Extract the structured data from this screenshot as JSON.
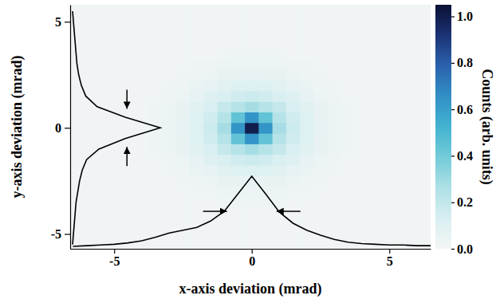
{
  "chart_data": {
    "type": "heatmap",
    "x_label": "x-axis deviation (mrad)",
    "y_label": "y-axis deviation (mrad)",
    "xlim": [
      -6.6,
      6.5
    ],
    "ylim": [
      -5.7,
      5.8
    ],
    "xticks": [
      -5,
      0,
      5
    ],
    "yticks": [
      -5,
      0,
      5
    ],
    "x_edges": [
      -6.6,
      -4.25,
      -3.75,
      -3.25,
      -2.75,
      -2.25,
      -1.75,
      -1.25,
      -0.75,
      -0.25,
      0.25,
      0.75,
      1.25,
      1.75,
      2.25,
      2.75,
      3.25,
      3.75,
      4.25,
      6.5
    ],
    "y_edges": [
      -5.7,
      -4.25,
      -3.75,
      -3.25,
      -2.75,
      -2.25,
      -1.75,
      -1.25,
      -0.75,
      -0.25,
      0.25,
      0.75,
      1.25,
      1.75,
      2.25,
      2.75,
      3.25,
      3.75,
      4.25,
      5.8
    ],
    "z": [
      [
        0.02,
        0.02,
        0.02,
        0.02,
        0.02,
        0.02,
        0.02,
        0.02,
        0.02,
        0.02,
        0.02,
        0.02,
        0.02,
        0.02,
        0.02,
        0.02,
        0.02,
        0.02,
        0.02
      ],
      [
        0.02,
        0.02,
        0.02,
        0.02,
        0.02,
        0.02,
        0.02,
        0.02,
        0.02,
        0.02,
        0.02,
        0.02,
        0.02,
        0.02,
        0.02,
        0.02,
        0.02,
        0.02,
        0.02
      ],
      [
        0.02,
        0.02,
        0.02,
        0.02,
        0.02,
        0.02,
        0.02,
        0.03,
        0.03,
        0.03,
        0.03,
        0.03,
        0.02,
        0.02,
        0.02,
        0.02,
        0.02,
        0.02,
        0.02
      ],
      [
        0.02,
        0.02,
        0.02,
        0.02,
        0.02,
        0.03,
        0.03,
        0.04,
        0.04,
        0.04,
        0.04,
        0.04,
        0.03,
        0.03,
        0.02,
        0.02,
        0.02,
        0.02,
        0.02
      ],
      [
        0.02,
        0.02,
        0.02,
        0.02,
        0.03,
        0.03,
        0.04,
        0.06,
        0.06,
        0.07,
        0.06,
        0.06,
        0.04,
        0.03,
        0.03,
        0.02,
        0.02,
        0.02,
        0.02
      ],
      [
        0.02,
        0.02,
        0.02,
        0.03,
        0.03,
        0.05,
        0.07,
        0.09,
        0.11,
        0.11,
        0.11,
        0.09,
        0.07,
        0.05,
        0.03,
        0.03,
        0.02,
        0.02,
        0.02
      ],
      [
        0.02,
        0.02,
        0.02,
        0.03,
        0.04,
        0.07,
        0.1,
        0.13,
        0.16,
        0.17,
        0.16,
        0.13,
        0.1,
        0.07,
        0.04,
        0.03,
        0.02,
        0.02,
        0.02
      ],
      [
        0.02,
        0.02,
        0.03,
        0.04,
        0.06,
        0.09,
        0.13,
        0.19,
        0.24,
        0.28,
        0.24,
        0.19,
        0.13,
        0.09,
        0.06,
        0.04,
        0.03,
        0.02,
        0.02
      ],
      [
        0.02,
        0.02,
        0.03,
        0.04,
        0.06,
        0.11,
        0.16,
        0.24,
        0.44,
        0.64,
        0.44,
        0.24,
        0.16,
        0.11,
        0.06,
        0.04,
        0.03,
        0.02,
        0.02
      ],
      [
        0.02,
        0.02,
        0.03,
        0.04,
        0.07,
        0.11,
        0.17,
        0.28,
        0.64,
        1.0,
        0.64,
        0.28,
        0.17,
        0.11,
        0.07,
        0.04,
        0.03,
        0.02,
        0.02
      ],
      [
        0.02,
        0.02,
        0.03,
        0.04,
        0.06,
        0.11,
        0.16,
        0.24,
        0.44,
        0.64,
        0.44,
        0.24,
        0.16,
        0.11,
        0.06,
        0.04,
        0.03,
        0.02,
        0.02
      ],
      [
        0.02,
        0.02,
        0.03,
        0.04,
        0.06,
        0.09,
        0.13,
        0.19,
        0.24,
        0.28,
        0.24,
        0.19,
        0.13,
        0.09,
        0.06,
        0.04,
        0.03,
        0.02,
        0.02
      ],
      [
        0.02,
        0.02,
        0.02,
        0.03,
        0.04,
        0.07,
        0.1,
        0.13,
        0.16,
        0.17,
        0.16,
        0.13,
        0.1,
        0.07,
        0.04,
        0.03,
        0.02,
        0.02,
        0.02
      ],
      [
        0.02,
        0.02,
        0.02,
        0.03,
        0.03,
        0.05,
        0.07,
        0.09,
        0.11,
        0.11,
        0.11,
        0.09,
        0.07,
        0.05,
        0.03,
        0.03,
        0.02,
        0.02,
        0.02
      ],
      [
        0.02,
        0.02,
        0.02,
        0.02,
        0.03,
        0.03,
        0.04,
        0.06,
        0.06,
        0.07,
        0.06,
        0.06,
        0.04,
        0.03,
        0.03,
        0.02,
        0.02,
        0.02,
        0.02
      ],
      [
        0.02,
        0.02,
        0.02,
        0.02,
        0.02,
        0.03,
        0.03,
        0.04,
        0.04,
        0.04,
        0.04,
        0.04,
        0.03,
        0.03,
        0.02,
        0.02,
        0.02,
        0.02,
        0.02
      ],
      [
        0.02,
        0.02,
        0.02,
        0.02,
        0.02,
        0.02,
        0.02,
        0.03,
        0.03,
        0.03,
        0.03,
        0.03,
        0.02,
        0.02,
        0.02,
        0.02,
        0.02,
        0.02,
        0.02
      ],
      [
        0.02,
        0.02,
        0.02,
        0.02,
        0.02,
        0.02,
        0.02,
        0.02,
        0.02,
        0.02,
        0.02,
        0.02,
        0.02,
        0.02,
        0.02,
        0.02,
        0.02,
        0.02,
        0.02
      ],
      [
        0.02,
        0.02,
        0.02,
        0.02,
        0.02,
        0.02,
        0.02,
        0.02,
        0.02,
        0.02,
        0.02,
        0.02,
        0.02,
        0.02,
        0.02,
        0.02,
        0.02,
        0.02,
        0.02
      ]
    ],
    "colorbar": {
      "label": "Counts (arb. units)",
      "range": [
        0,
        1.05
      ],
      "ticks": [
        {
          "value": 0,
          "label": "0.0"
        },
        0.2,
        0.4,
        0.6,
        0.8,
        {
          "value": 1,
          "label": "1.0"
        }
      ]
    },
    "x_profile": {
      "x": [
        -6.5,
        -6,
        -5.5,
        -5,
        -4.5,
        -4,
        -3.5,
        -3,
        -2.5,
        -2,
        -1.5,
        -1,
        -0.5,
        0,
        0.5,
        1,
        1.5,
        2,
        2.5,
        3,
        3.5,
        4,
        4.5,
        5,
        5.5,
        6,
        6.5
      ],
      "values": [
        0.0,
        0.01,
        0.02,
        0.03,
        0.05,
        0.08,
        0.13,
        0.19,
        0.23,
        0.27,
        0.36,
        0.5,
        0.75,
        1.0,
        0.75,
        0.49,
        0.33,
        0.23,
        0.16,
        0.1,
        0.06,
        0.04,
        0.03,
        0.02,
        0.02,
        0.01,
        0.01
      ]
    },
    "y_profile": {
      "y": [
        -5.5,
        -5,
        -4.5,
        -4,
        -3.5,
        -3,
        -2.5,
        -2,
        -1.5,
        -1,
        -0.5,
        0,
        0.5,
        1,
        1.5,
        2,
        2.5,
        3,
        3.5,
        4,
        4.5,
        5,
        5.5
      ],
      "values": [
        0.0,
        0.01,
        0.02,
        0.03,
        0.04,
        0.06,
        0.08,
        0.11,
        0.16,
        0.3,
        0.6,
        1.0,
        0.6,
        0.28,
        0.15,
        0.1,
        0.07,
        0.05,
        0.04,
        0.03,
        0.02,
        0.01,
        0.0
      ]
    },
    "fwhm": {
      "x": [
        -0.9,
        0.9
      ],
      "y": [
        -0.9,
        0.9
      ]
    }
  }
}
